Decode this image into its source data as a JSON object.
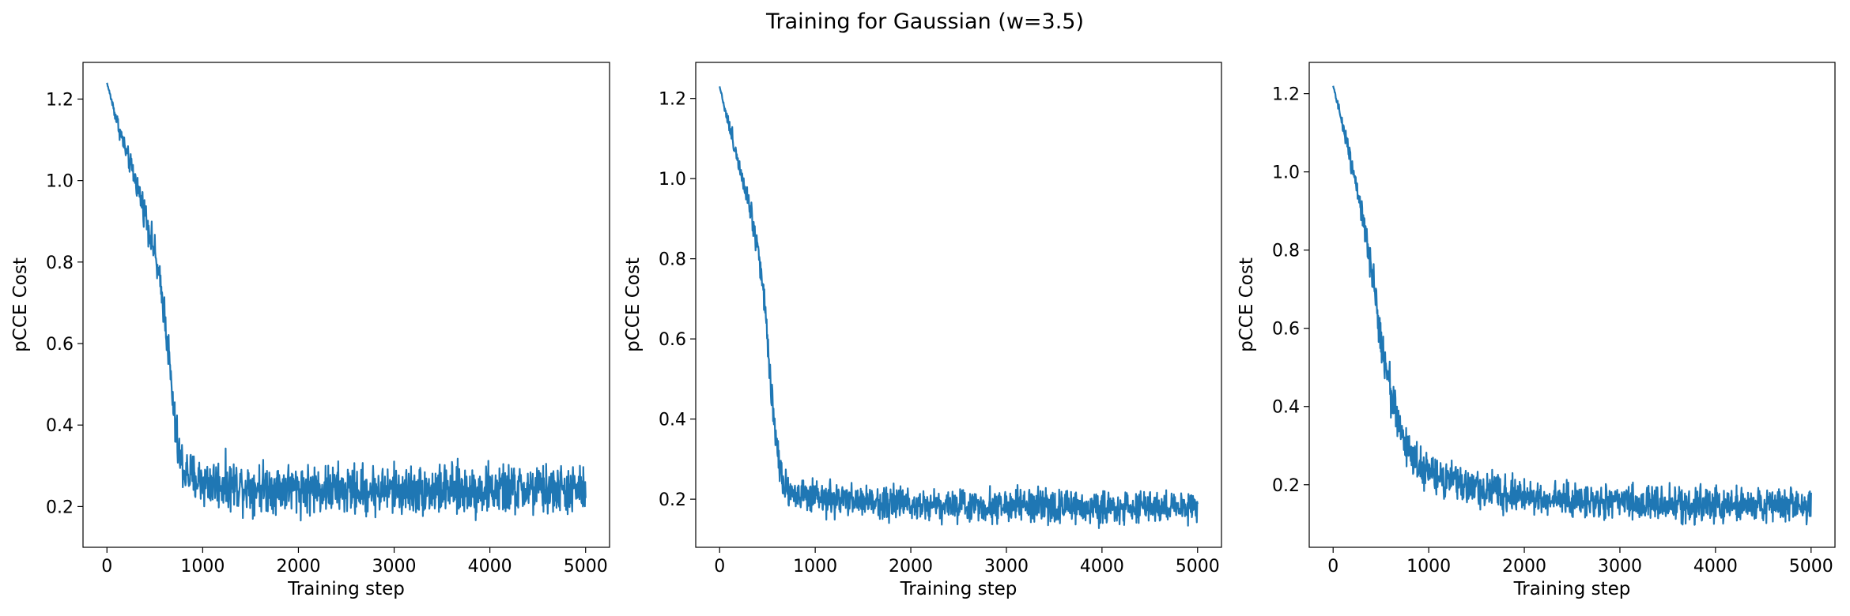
{
  "figure": {
    "title": "Training for Gaussian (w=3.5)",
    "line_color": "#1f77b4"
  },
  "chart_data": [
    {
      "type": "line",
      "title": "",
      "xlabel": "Training step",
      "ylabel": "pCCE Cost",
      "xlim": [
        -250,
        5250
      ],
      "ylim": [
        0.1,
        1.29
      ],
      "xticks": [
        0,
        1000,
        2000,
        3000,
        4000,
        5000
      ],
      "yticks": [
        0.2,
        0.4,
        0.6,
        0.8,
        1.0,
        1.2
      ],
      "ytick_labels": [
        "0.2",
        "0.4",
        "0.6",
        "0.8",
        "1.0",
        "1.2"
      ],
      "grid": false,
      "series": [
        {
          "x": [
            0,
            100,
            200,
            300,
            400,
            500,
            600,
            650,
            700,
            750,
            800,
            900,
            1000,
            1500,
            2000,
            2500,
            3000,
            3500,
            4000,
            4500,
            5000
          ],
          "y": [
            1.24,
            1.15,
            1.07,
            1.0,
            0.92,
            0.82,
            0.68,
            0.56,
            0.42,
            0.33,
            0.29,
            0.27,
            0.26,
            0.25,
            0.245,
            0.24,
            0.24,
            0.24,
            0.24,
            0.24,
            0.24
          ],
          "noise": [
            0.0,
            0.01,
            0.012,
            0.015,
            0.018,
            0.02,
            0.022,
            0.025,
            0.03,
            0.03,
            0.03,
            0.03,
            0.03,
            0.03,
            0.03,
            0.03,
            0.03,
            0.03,
            0.03,
            0.03,
            0.03
          ]
        }
      ]
    },
    {
      "type": "line",
      "title": "",
      "xlabel": "Training step",
      "ylabel": "pCCE Cost",
      "xlim": [
        -250,
        5250
      ],
      "ylim": [
        0.08,
        1.29
      ],
      "xticks": [
        0,
        1000,
        2000,
        3000,
        4000,
        5000
      ],
      "yticks": [
        0.2,
        0.4,
        0.6,
        0.8,
        1.0,
        1.2
      ],
      "ytick_labels": [
        "0.2",
        "0.4",
        "0.6",
        "0.8",
        "1.0",
        "1.2"
      ],
      "grid": false,
      "series": [
        {
          "x": [
            0,
            100,
            200,
            300,
            400,
            450,
            500,
            550,
            600,
            650,
            700,
            800,
            1000,
            1500,
            2000,
            2500,
            3000,
            3500,
            4000,
            4500,
            5000
          ],
          "y": [
            1.23,
            1.13,
            1.04,
            0.95,
            0.83,
            0.74,
            0.6,
            0.45,
            0.33,
            0.26,
            0.23,
            0.21,
            0.2,
            0.195,
            0.19,
            0.185,
            0.185,
            0.18,
            0.18,
            0.18,
            0.18
          ],
          "noise": [
            0.0,
            0.01,
            0.012,
            0.015,
            0.02,
            0.02,
            0.022,
            0.024,
            0.024,
            0.022,
            0.02,
            0.02,
            0.02,
            0.02,
            0.02,
            0.02,
            0.02,
            0.02,
            0.02,
            0.02,
            0.02
          ]
        }
      ]
    },
    {
      "type": "line",
      "title": "",
      "xlabel": "Training step",
      "ylabel": "pCCE Cost",
      "xlim": [
        -250,
        5250
      ],
      "ylim": [
        0.04,
        1.28
      ],
      "xticks": [
        0,
        1000,
        2000,
        3000,
        4000,
        5000
      ],
      "yticks": [
        0.2,
        0.4,
        0.6,
        0.8,
        1.0,
        1.2
      ],
      "ytick_labels": [
        "0.2",
        "0.4",
        "0.6",
        "0.8",
        "1.0",
        "1.2"
      ],
      "grid": false,
      "series": [
        {
          "x": [
            0,
            100,
            200,
            300,
            400,
            500,
            600,
            700,
            800,
            900,
            1000,
            1200,
            1500,
            2000,
            2500,
            3000,
            3500,
            4000,
            4500,
            5000
          ],
          "y": [
            1.22,
            1.12,
            1.02,
            0.9,
            0.74,
            0.58,
            0.44,
            0.34,
            0.28,
            0.25,
            0.23,
            0.21,
            0.19,
            0.17,
            0.16,
            0.155,
            0.15,
            0.15,
            0.148,
            0.148
          ],
          "noise": [
            0.0,
            0.01,
            0.015,
            0.02,
            0.025,
            0.028,
            0.028,
            0.026,
            0.025,
            0.022,
            0.022,
            0.022,
            0.022,
            0.022,
            0.022,
            0.022,
            0.022,
            0.022,
            0.022,
            0.022
          ]
        }
      ]
    }
  ]
}
